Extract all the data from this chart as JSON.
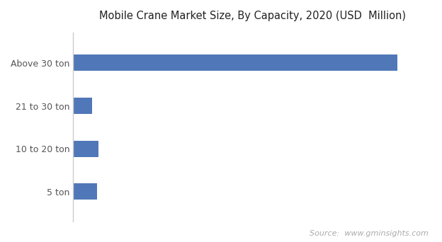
{
  "title": "Mobile Crane Market Size, By Capacity, 2020 (USD  Million)",
  "categories": [
    "Above 30 ton",
    "21 to 30 ton",
    "10 to 20 ton",
    "5 ton"
  ],
  "values": [
    4800,
    280,
    380,
    350
  ],
  "bar_color": "#5078b8",
  "background_color": "#ffffff",
  "text_color": "#555555",
  "source_text": "Source:  www.gminsights.com",
  "title_fontsize": 10.5,
  "label_fontsize": 9,
  "source_fontsize": 8,
  "xlim": [
    0,
    5300
  ],
  "bar_height": 0.38
}
